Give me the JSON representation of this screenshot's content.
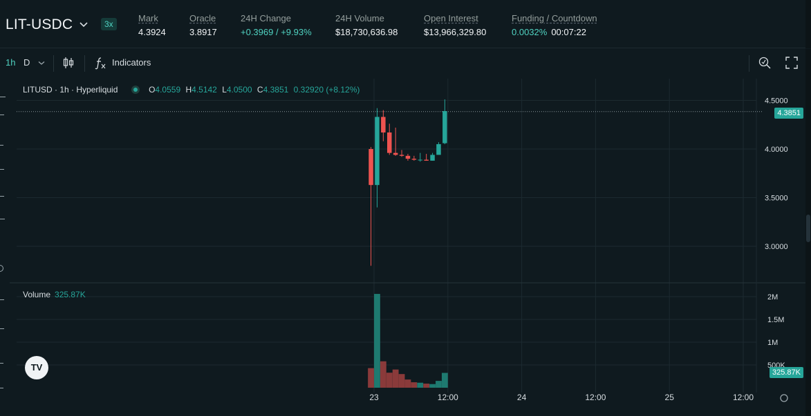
{
  "header": {
    "pair": "LIT-USDC",
    "leverage": "3x",
    "stats": [
      {
        "label": "Mark",
        "value": "4.3924",
        "underline": true
      },
      {
        "label": "Oracle",
        "value": "3.8917",
        "underline": true
      },
      {
        "label": "24H Change",
        "value": "+0.3969 / +9.93%",
        "positive": true
      },
      {
        "label": "24H Volume",
        "value": "$18,730,636.98"
      },
      {
        "label": "Open Interest",
        "value": "$13,966,329.80",
        "underline": true
      },
      {
        "label": "Funding / Countdown",
        "value": "0.0032%",
        "value2": "00:07:22",
        "underline": true
      }
    ]
  },
  "toolbar": {
    "interval_active": "1h",
    "interval_other": "D",
    "indicators_label": "Indicators",
    "icons": [
      "chevron-down-icon",
      "candles-icon",
      "function-icon",
      "zoom-icon",
      "fullscreen-icon"
    ]
  },
  "legend": {
    "symbol": "LITUSD · 1h · Hyperliquid",
    "o_label": "O",
    "o": "4.0559",
    "h_label": "H",
    "h": "4.5142",
    "l_label": "L",
    "l": "4.0500",
    "c_label": "C",
    "c": "4.3851",
    "change": "0.32920 (+8.12%)"
  },
  "volume_legend": {
    "label": "Volume",
    "value": "325.87K"
  },
  "price_axis_tag": "4.3851",
  "volume_axis_tag": "325.87K",
  "logo_text": "TV",
  "colors": {
    "up": "#26a69a",
    "down": "#ef5350",
    "accent": "#50d2c1",
    "background": "#0f1a1f"
  },
  "chart_data": {
    "type": "candlestick",
    "price_ticks": [
      "4.5000",
      "4.0000",
      "3.5000",
      "3.0000"
    ],
    "price_tick_values": [
      4.5,
      4.0,
      3.5,
      3.0
    ],
    "volume_ticks": [
      "2M",
      "1.5M",
      "1M",
      "500K"
    ],
    "volume_tick_values": [
      2000000,
      1500000,
      1000000,
      500000
    ],
    "x_ticks": [
      "23",
      "12:00",
      "24",
      "12:00",
      "25",
      "12:00"
    ],
    "x_tick_hours": [
      0,
      12,
      24,
      36,
      48,
      60
    ],
    "last_price": 4.3851,
    "grid": true,
    "candles": [
      {
        "h": -0.5,
        "o": 4.0,
        "hi": 4.02,
        "lo": 2.8,
        "c": 3.63,
        "v": 430000
      },
      {
        "h": 0.5,
        "o": 3.63,
        "hi": 4.42,
        "lo": 3.4,
        "c": 4.33,
        "v": 2060000
      },
      {
        "h": 1.5,
        "o": 4.33,
        "hi": 4.4,
        "lo": 4.08,
        "c": 4.17,
        "v": 580000
      },
      {
        "h": 2.5,
        "o": 4.17,
        "hi": 4.26,
        "lo": 3.94,
        "c": 3.96,
        "v": 330000
      },
      {
        "h": 3.5,
        "o": 3.96,
        "hi": 4.22,
        "lo": 3.93,
        "c": 3.94,
        "v": 400000
      },
      {
        "h": 4.5,
        "o": 3.94,
        "hi": 3.99,
        "lo": 3.92,
        "c": 3.93,
        "v": 300000
      },
      {
        "h": 5.5,
        "o": 3.93,
        "hi": 3.95,
        "lo": 3.88,
        "c": 3.9,
        "v": 180000
      },
      {
        "h": 6.5,
        "o": 3.9,
        "hi": 3.93,
        "lo": 3.88,
        "c": 3.89,
        "v": 120000
      },
      {
        "h": 7.5,
        "o": 3.89,
        "hi": 3.96,
        "lo": 3.87,
        "c": 3.89,
        "v": 110000
      },
      {
        "h": 8.5,
        "o": 3.89,
        "hi": 3.95,
        "lo": 3.88,
        "c": 3.88,
        "v": 90000
      },
      {
        "h": 9.5,
        "o": 3.88,
        "hi": 3.96,
        "lo": 3.88,
        "c": 3.94,
        "v": 80000
      },
      {
        "h": 10.5,
        "o": 3.94,
        "hi": 4.07,
        "lo": 3.94,
        "c": 4.05,
        "v": 150000
      },
      {
        "h": 11.5,
        "o": 4.06,
        "hi": 4.51,
        "lo": 4.05,
        "c": 4.39,
        "v": 325870
      }
    ]
  }
}
